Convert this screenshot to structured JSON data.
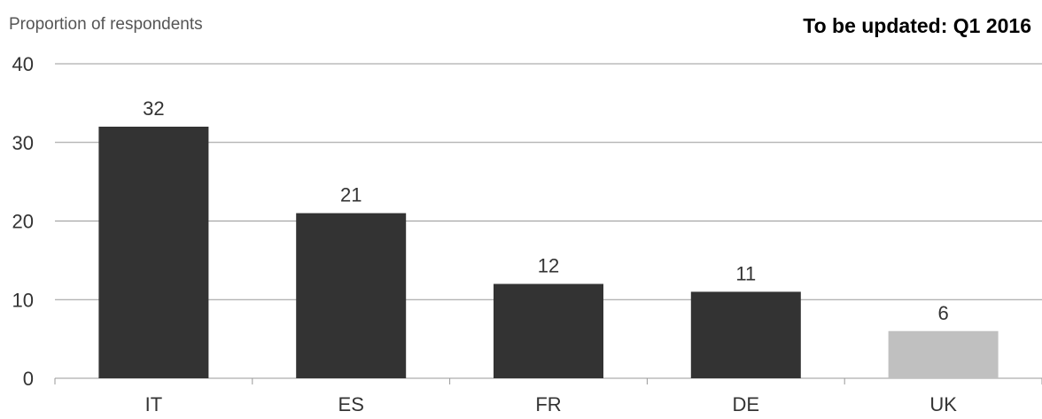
{
  "chart_data": {
    "type": "bar",
    "ylabel": "Proportion of respondents",
    "note": "To be updated: Q1 2016",
    "categories": [
      "IT",
      "ES",
      "FR",
      "DE",
      "UK"
    ],
    "values": [
      32,
      21,
      12,
      11,
      6
    ],
    "data_labels": [
      "32",
      "21",
      "12",
      "11",
      "6"
    ],
    "ylim": [
      0,
      40
    ],
    "yticks": [
      0,
      10,
      20,
      30,
      40
    ],
    "ytick_labels": [
      "0",
      "10",
      "20",
      "30",
      "40"
    ],
    "grid": true,
    "colors": {
      "bar": "#333333",
      "highlight_bar": "#c0c0c0",
      "grid": "#999999"
    },
    "highlight_category": "UK"
  }
}
